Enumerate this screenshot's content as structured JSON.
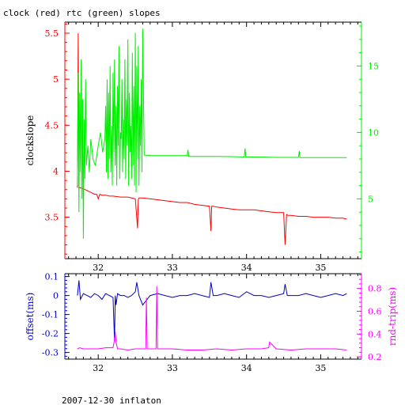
{
  "header": {
    "title": "clock (red) rtc (green) slopes"
  },
  "footer": {
    "caption": "2007-12-30 inflaton"
  },
  "colors": {
    "red": "#ff0000",
    "green": "#00ee00",
    "blue": "#0000cc",
    "magenta": "#ff00ff",
    "axis": "#000000"
  },
  "chart_data": [
    {
      "type": "line",
      "title": "clock (red) rtc (green) slopes",
      "xlim": [
        31.55,
        35.55
      ],
      "xticks": [
        32,
        33,
        34,
        35
      ],
      "xtick_labels": [
        "32",
        "33",
        "34",
        "35"
      ],
      "left_axis": {
        "label": "clockslope",
        "color": "#ff0000",
        "lim": [
          3.05,
          5.62
        ],
        "ticks": [
          3.5,
          4,
          4.5,
          5,
          5.5
        ],
        "tick_labels": [
          "3.5",
          "4",
          "4.5",
          "5",
          "5.5"
        ]
      },
      "right_axis": {
        "label": "",
        "color": "#00ee00",
        "lim": [
          0.5,
          18.3
        ],
        "ticks": [
          5,
          10,
          15
        ],
        "tick_labels": [
          "5",
          "10",
          "15"
        ]
      },
      "series": [
        {
          "axis": "left",
          "color": "#ff0000",
          "x": [
            31.72,
            31.73,
            31.74,
            31.76,
            31.8,
            31.85,
            31.9,
            31.95,
            31.98,
            32.0,
            32.02,
            32.05,
            32.1,
            32.15,
            32.2,
            32.3,
            32.4,
            32.5,
            32.53,
            32.54,
            32.55,
            32.6,
            32.7,
            32.8,
            32.9,
            33.0,
            33.1,
            33.2,
            33.3,
            33.4,
            33.5,
            33.52,
            33.53,
            33.55,
            33.6,
            33.7,
            33.8,
            33.9,
            34.0,
            34.1,
            34.2,
            34.3,
            34.4,
            34.5,
            34.52,
            34.54,
            34.56,
            34.6,
            34.7,
            34.8,
            34.9,
            35.0,
            35.1,
            35.2,
            35.3,
            35.35
          ],
          "y": [
            3.82,
            5.5,
            3.82,
            3.82,
            3.81,
            3.79,
            3.77,
            3.75,
            3.75,
            3.7,
            3.75,
            3.74,
            3.74,
            3.73,
            3.73,
            3.72,
            3.72,
            3.7,
            3.38,
            3.69,
            3.71,
            3.71,
            3.7,
            3.69,
            3.68,
            3.67,
            3.66,
            3.66,
            3.64,
            3.63,
            3.62,
            3.35,
            3.62,
            3.62,
            3.61,
            3.6,
            3.59,
            3.58,
            3.58,
            3.58,
            3.57,
            3.56,
            3.55,
            3.55,
            3.2,
            3.53,
            3.52,
            3.52,
            3.51,
            3.51,
            3.5,
            3.5,
            3.5,
            3.49,
            3.49,
            3.48
          ]
        },
        {
          "axis": "right",
          "color": "#00ee00",
          "x": [
            31.72,
            31.73,
            31.74,
            31.75,
            31.76,
            31.77,
            31.78,
            31.79,
            31.8,
            31.81,
            31.82,
            31.83,
            31.84,
            31.86,
            31.88,
            31.9,
            31.93,
            31.96,
            32.0,
            32.03,
            32.06,
            32.09,
            32.1,
            32.11,
            32.12,
            32.13,
            32.14,
            32.15,
            32.16,
            32.17,
            32.18,
            32.19,
            32.2,
            32.21,
            32.22,
            32.23,
            32.24,
            32.25,
            32.26,
            32.27,
            32.28,
            32.29,
            32.3,
            32.31,
            32.32,
            32.33,
            32.34,
            32.35,
            32.36,
            32.37,
            32.38,
            32.39,
            32.4,
            32.41,
            32.42,
            32.43,
            32.44,
            32.45,
            32.46,
            32.47,
            32.48,
            32.49,
            32.5,
            32.51,
            32.52,
            32.53,
            32.54,
            32.55,
            32.56,
            32.57,
            32.58,
            32.59,
            32.6,
            32.62,
            32.7,
            32.8,
            33.0,
            33.2,
            33.21,
            33.22,
            33.4,
            33.6,
            33.8,
            33.97,
            33.98,
            33.99,
            34.2,
            34.4,
            34.6,
            34.7,
            34.71,
            34.72,
            34.9,
            35.1,
            35.35
          ],
          "y": [
            6.0,
            14.5,
            4.0,
            13.0,
            7.0,
            15.5,
            5.0,
            12.5,
            2.0,
            11.0,
            6.5,
            14.0,
            7.5,
            9.0,
            7.0,
            9.5,
            8.0,
            7.5,
            9.0,
            10.0,
            8.5,
            9.5,
            12.0,
            7.0,
            14.0,
            6.5,
            13.0,
            8.0,
            15.0,
            7.0,
            10.5,
            6.0,
            14.5,
            8.5,
            15.5,
            7.5,
            12.0,
            6.0,
            13.5,
            9.0,
            16.5,
            6.5,
            10.0,
            9.5,
            14.0,
            7.0,
            11.0,
            8.0,
            15.5,
            6.5,
            12.5,
            9.0,
            17.0,
            6.0,
            13.0,
            8.5,
            10.5,
            6.5,
            16.0,
            7.5,
            13.5,
            6.0,
            17.5,
            5.5,
            15.0,
            8.0,
            16.5,
            6.0,
            12.0,
            9.0,
            14.0,
            7.0,
            17.8,
            8.3,
            8.25,
            8.25,
            8.25,
            8.25,
            8.7,
            8.2,
            8.2,
            8.2,
            8.18,
            8.15,
            8.8,
            8.15,
            8.15,
            8.12,
            8.12,
            8.12,
            8.6,
            8.1,
            8.1,
            8.1,
            8.1
          ]
        }
      ]
    },
    {
      "type": "line",
      "title": "",
      "xlim": [
        31.55,
        35.55
      ],
      "xticks": [
        32,
        33,
        34,
        35
      ],
      "xtick_labels": [
        "32",
        "33",
        "34",
        "35"
      ],
      "left_axis": {
        "label": "offset(ms)",
        "color": "#0000cc",
        "lim": [
          -0.335,
          0.115
        ],
        "ticks": [
          -0.3,
          -0.2,
          -0.1,
          0,
          0.1
        ],
        "tick_labels": [
          "-0.3",
          "-0.2",
          "-0.1",
          "0",
          "0.1"
        ]
      },
      "right_axis": {
        "label": "rnd-trip(ms)",
        "color": "#ff00ff",
        "lim": [
          0.18,
          0.93
        ],
        "ticks": [
          0.2,
          0.4,
          0.6,
          0.8
        ],
        "tick_labels": [
          "0.2",
          "0.4",
          "0.6",
          "0.8"
        ]
      },
      "series": [
        {
          "axis": "left",
          "color": "#0000cc",
          "x": [
            31.72,
            31.74,
            31.76,
            31.8,
            31.85,
            31.9,
            31.95,
            32.0,
            32.05,
            32.1,
            32.15,
            32.2,
            32.22,
            32.23,
            32.24,
            32.26,
            32.3,
            32.35,
            32.4,
            32.45,
            32.5,
            32.52,
            32.55,
            32.6,
            32.7,
            32.8,
            32.9,
            33.0,
            33.1,
            33.2,
            33.3,
            33.4,
            33.5,
            33.52,
            33.55,
            33.6,
            33.7,
            33.8,
            33.9,
            34.0,
            34.1,
            34.2,
            34.3,
            34.4,
            34.5,
            34.52,
            34.55,
            34.6,
            34.7,
            34.8,
            34.9,
            35.0,
            35.1,
            35.2,
            35.3,
            35.35
          ],
          "y": [
            0.0,
            0.08,
            -0.02,
            0.01,
            0.0,
            -0.01,
            0.01,
            0.0,
            -0.02,
            0.01,
            0.0,
            -0.01,
            -0.24,
            0.0,
            -0.05,
            0.01,
            0.0,
            0.0,
            -0.01,
            0.0,
            0.02,
            0.07,
            0.0,
            -0.05,
            0.0,
            0.01,
            0.0,
            -0.01,
            0.0,
            0.0,
            0.01,
            0.0,
            -0.01,
            0.07,
            0.0,
            0.0,
            0.01,
            0.0,
            -0.01,
            0.02,
            0.0,
            0.0,
            -0.01,
            0.0,
            0.01,
            0.06,
            0.0,
            0.0,
            0.0,
            0.01,
            0.0,
            -0.01,
            0.0,
            0.01,
            0.0,
            0.01
          ]
        },
        {
          "axis": "right",
          "color": "#ff00ff",
          "x": [
            31.72,
            31.75,
            31.8,
            31.85,
            31.9,
            32.0,
            32.1,
            32.2,
            32.22,
            32.23,
            32.24,
            32.26,
            32.3,
            32.4,
            32.5,
            32.6,
            32.64,
            32.65,
            32.66,
            32.7,
            32.78,
            32.79,
            32.8,
            32.9,
            33.0,
            33.2,
            33.4,
            33.6,
            33.8,
            34.0,
            34.2,
            34.3,
            34.31,
            34.4,
            34.6,
            34.8,
            35.0,
            35.2,
            35.35
          ],
          "y": [
            0.27,
            0.28,
            0.27,
            0.27,
            0.27,
            0.27,
            0.28,
            0.28,
            0.35,
            0.42,
            0.33,
            0.27,
            0.27,
            0.26,
            0.27,
            0.27,
            0.27,
            0.72,
            0.27,
            0.27,
            0.27,
            0.82,
            0.27,
            0.27,
            0.27,
            0.26,
            0.26,
            0.27,
            0.26,
            0.27,
            0.27,
            0.28,
            0.33,
            0.27,
            0.26,
            0.27,
            0.27,
            0.27,
            0.26
          ]
        }
      ]
    }
  ]
}
